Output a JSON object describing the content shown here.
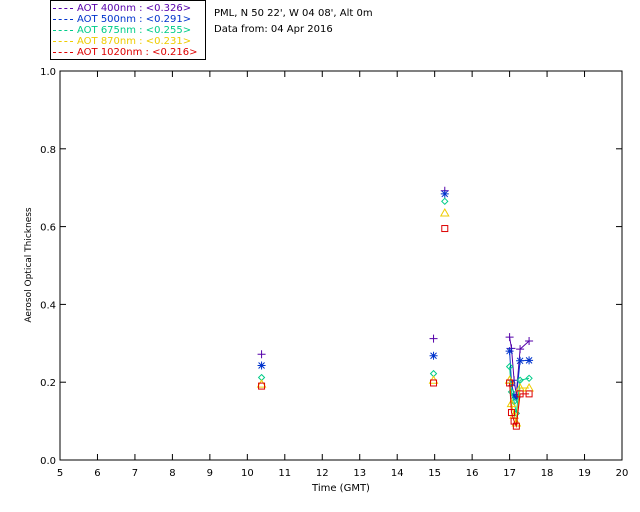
{
  "header": {
    "site_line": "PML, N 50 22', W 04 08', Alt 0m",
    "date_line": "Data from: 04 Apr 2016"
  },
  "legend": [
    {
      "text": "AOT  400nm : <0.326>",
      "color": "#5500aa"
    },
    {
      "text": "AOT  500nm : <0.291>",
      "color": "#0033cc"
    },
    {
      "text": "AOT  675nm : <0.255>",
      "color": "#00cc88"
    },
    {
      "text": "AOT  870nm : <0.231>",
      "color": "#eecc00"
    },
    {
      "text": "AOT 1020nm : <0.216>",
      "color": "#dd0000"
    }
  ],
  "chart_data": {
    "type": "scatter",
    "title": "",
    "xlabel": "Time (GMT)",
    "ylabel": "Aerosol Optical Thickness",
    "xlim": [
      5,
      20
    ],
    "ylim": [
      0.0,
      1.0
    ],
    "xticks": [
      5,
      6,
      7,
      8,
      9,
      10,
      11,
      12,
      13,
      14,
      15,
      16,
      17,
      18,
      19,
      20
    ],
    "yticks": [
      0.0,
      0.2,
      0.4,
      0.6,
      0.8,
      1.0
    ],
    "ytick_labels": [
      "0.0",
      "0.2",
      "0.4",
      "0.6",
      "0.8",
      "1.0"
    ],
    "series": [
      {
        "name": "AOT 400nm",
        "color": "#5500aa",
        "marker": "plus",
        "points": [
          [
            10.38,
            0.272
          ],
          [
            14.97,
            0.312
          ],
          [
            15.27,
            0.692
          ],
          [
            17.0,
            0.316
          ],
          [
            17.05,
            0.287
          ],
          [
            17.12,
            0.205
          ],
          [
            17.18,
            0.168
          ],
          [
            17.28,
            0.285
          ],
          [
            17.52,
            0.306
          ]
        ]
      },
      {
        "name": "AOT 500nm",
        "color": "#0033cc",
        "marker": "asterisk",
        "points": [
          [
            10.38,
            0.243
          ],
          [
            14.97,
            0.268
          ],
          [
            15.27,
            0.684
          ],
          [
            17.0,
            0.28
          ],
          [
            17.05,
            0.198
          ],
          [
            17.12,
            0.165
          ],
          [
            17.18,
            0.16
          ],
          [
            17.28,
            0.255
          ],
          [
            17.52,
            0.256
          ]
        ]
      },
      {
        "name": "AOT 675nm",
        "color": "#00cc88",
        "marker": "diamond",
        "points": [
          [
            10.38,
            0.212
          ],
          [
            14.97,
            0.222
          ],
          [
            15.27,
            0.665
          ],
          [
            17.0,
            0.24
          ],
          [
            17.05,
            0.175
          ],
          [
            17.12,
            0.15
          ],
          [
            17.18,
            0.12
          ],
          [
            17.28,
            0.205
          ],
          [
            17.52,
            0.21
          ]
        ]
      },
      {
        "name": "AOT 870nm",
        "color": "#eecc00",
        "marker": "triangle",
        "points": [
          [
            10.38,
            0.195
          ],
          [
            14.97,
            0.205
          ],
          [
            15.27,
            0.635
          ],
          [
            17.0,
            0.205
          ],
          [
            17.05,
            0.145
          ],
          [
            17.12,
            0.115
          ],
          [
            17.18,
            0.095
          ],
          [
            17.28,
            0.185
          ],
          [
            17.52,
            0.185
          ]
        ]
      },
      {
        "name": "AOT 1020nm",
        "color": "#dd0000",
        "marker": "square",
        "points": [
          [
            10.38,
            0.19
          ],
          [
            14.97,
            0.198
          ],
          [
            15.27,
            0.595
          ],
          [
            17.0,
            0.198
          ],
          [
            17.05,
            0.122
          ],
          [
            17.12,
            0.1
          ],
          [
            17.18,
            0.087
          ],
          [
            17.28,
            0.17
          ],
          [
            17.52,
            0.17
          ]
        ]
      }
    ]
  }
}
